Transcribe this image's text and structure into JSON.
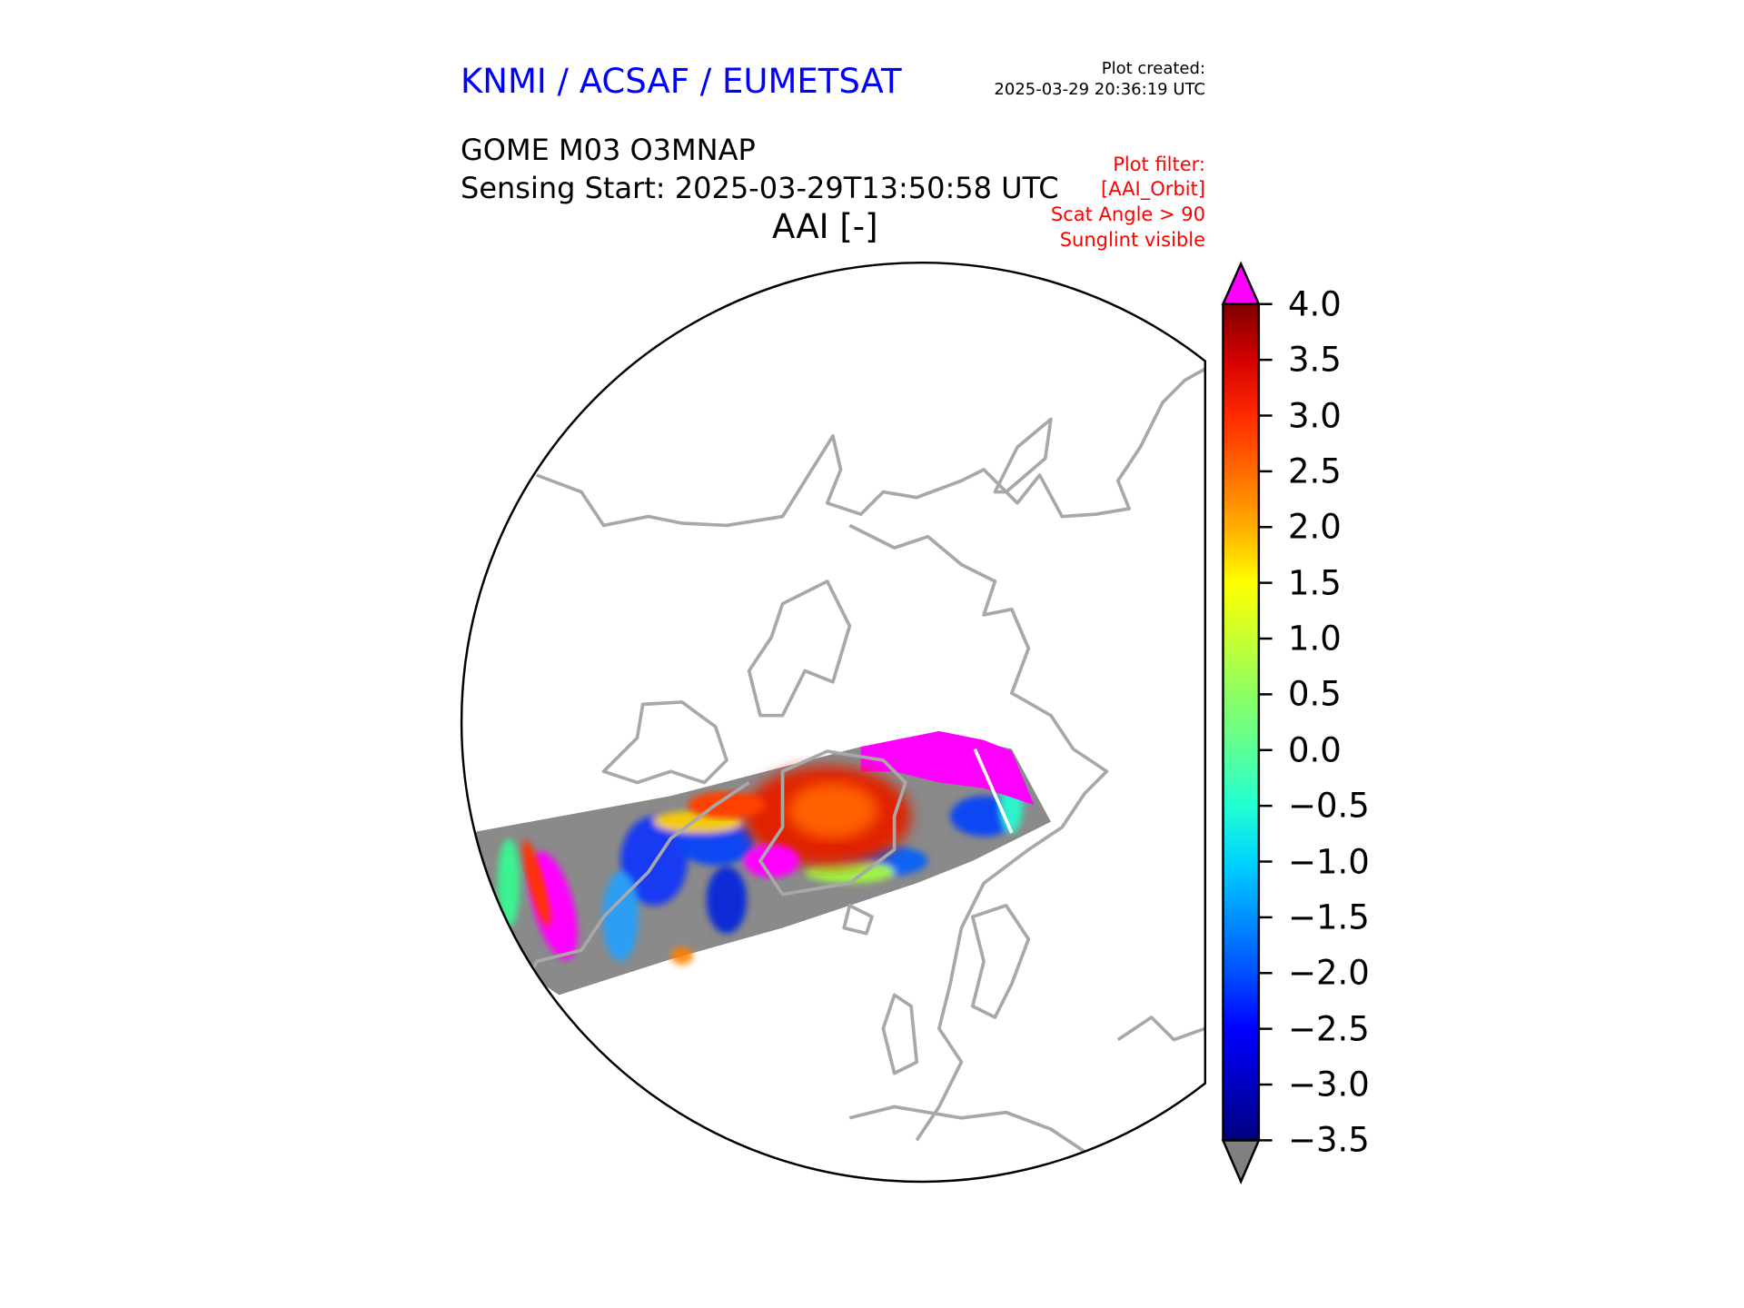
{
  "header": {
    "brand": "KNMI / ACSAF / EUMETSAT",
    "plot_created_label": "Plot created:",
    "plot_created_value": "2025-03-29 20:36:19 UTC",
    "product": "GOME M03 O3MNAP",
    "sensing_start": "Sensing Start: 2025-03-29T13:50:58 UTC",
    "variable_title": "AAI [-]",
    "filters": [
      "Plot filter:",
      "[AAI_Orbit]",
      "Scat Angle > 90",
      "Sunglint visible"
    ]
  },
  "colors": {
    "brand": "#0000ff",
    "filter": "#ff0000",
    "coastline": "#a8a8a8",
    "over": "#ff00ff",
    "under": "#808080"
  },
  "chart_data": {
    "type": "heatmap",
    "title": "AAI [-]",
    "projection": "north polar stereographic",
    "colorbar": {
      "label": "AAI [-]",
      "range": [
        -3.5,
        4.0
      ],
      "extend": "both",
      "over_color": "#ff00ff",
      "under_color": "#808080",
      "ticks": [
        4.0,
        3.5,
        3.0,
        2.5,
        2.0,
        1.5,
        1.0,
        0.5,
        0.0,
        -0.5,
        -1.0,
        -1.5,
        -2.0,
        -2.5,
        -3.0,
        -3.5
      ],
      "tick_labels": [
        "4.0",
        "3.5",
        "3.0",
        "2.5",
        "2.0",
        "1.5",
        "1.0",
        "0.5",
        "0.0",
        "−0.5",
        "−1.0",
        "−1.5",
        "−2.0",
        "−2.5",
        "−3.0",
        "−3.5"
      ],
      "stops": [
        {
          "value": 4.0,
          "color": "#800000"
        },
        {
          "value": 3.5,
          "color": "#d40000"
        },
        {
          "value": 3.0,
          "color": "#ff2a00"
        },
        {
          "value": 2.5,
          "color": "#ff6a00"
        },
        {
          "value": 2.0,
          "color": "#ffae00"
        },
        {
          "value": 1.5,
          "color": "#ffff00"
        },
        {
          "value": 1.0,
          "color": "#c8ff30"
        },
        {
          "value": 0.5,
          "color": "#8cff64"
        },
        {
          "value": 0.0,
          "color": "#5cff98"
        },
        {
          "value": -0.5,
          "color": "#22ffd2"
        },
        {
          "value": -1.0,
          "color": "#00d4ff"
        },
        {
          "value": -1.5,
          "color": "#0090ff"
        },
        {
          "value": -2.0,
          "color": "#0050ff"
        },
        {
          "value": -2.5,
          "color": "#0000ff"
        },
        {
          "value": -3.0,
          "color": "#0000c0"
        },
        {
          "value": -3.5,
          "color": "#000080"
        }
      ]
    }
  }
}
